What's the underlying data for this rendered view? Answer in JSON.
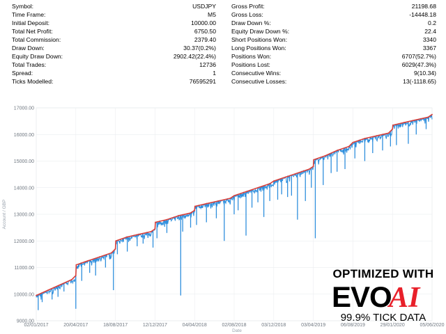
{
  "stats_left": [
    {
      "label": "Symbol:",
      "value": "USDJPY"
    },
    {
      "label": "Time Frame:",
      "value": "M5"
    },
    {
      "label": "Initial Deposit:",
      "value": "10000.00"
    },
    {
      "label": "Total Net Profit:",
      "value": "6750.50"
    },
    {
      "label": "Total Commission:",
      "value": "2379.40"
    },
    {
      "label": "Draw Down:",
      "value": "30.37(0.2%)"
    },
    {
      "label": "Equity Draw Down:",
      "value": "2902.42(22.4%)"
    },
    {
      "label": "Total Trades:",
      "value": "12736"
    },
    {
      "label": "Spread:",
      "value": "1"
    },
    {
      "label": "Ticks Modelled:",
      "value": "76595291"
    }
  ],
  "stats_right": [
    {
      "label": "Gross Profit:",
      "value": "21198.68"
    },
    {
      "label": "Gross Loss:",
      "value": "-14448.18"
    },
    {
      "label": "Draw Down %:",
      "value": "0.2"
    },
    {
      "label": "Equity Draw Down %:",
      "value": "22.4"
    },
    {
      "label": "Short Positions Won:",
      "value": "3340"
    },
    {
      "label": "Long Positions Won:",
      "value": "3367"
    },
    {
      "label": "Positions Won:",
      "value": "6707(52.7%)"
    },
    {
      "label": "Positions Lost:",
      "value": "6029(47.3%)"
    },
    {
      "label": "Consecutive Wins:",
      "value": "9(10.34)"
    },
    {
      "label": "Consecutive Losses:",
      "value": "13(-1118.65)"
    }
  ],
  "chart_data": {
    "type": "line",
    "title": "",
    "xlabel": "Date",
    "ylabel": "Account / GBP",
    "ylim": [
      9000,
      17000
    ],
    "yticks": [
      "17000.00",
      "16000.00",
      "15000.00",
      "14000.00",
      "13000.00",
      "12000.00",
      "11000.00",
      "10000.00",
      "9000.00"
    ],
    "xticks": [
      "02/01/2017",
      "20/04/2017",
      "18/08/2017",
      "12/12/2017",
      "04/04/2018",
      "02/08/2018",
      "03/12/2018",
      "03/04/2019",
      "06/08/2019",
      "29/01/2020",
      "05/06/2020"
    ],
    "x_positions": [
      0,
      1,
      2,
      3,
      4,
      5,
      6,
      7,
      8,
      9,
      10
    ],
    "grid": true,
    "series": [
      {
        "color": "#d9403a",
        "x": [
          0.0,
          0.3,
          0.6,
          0.9,
          1.0,
          1.01,
          1.3,
          1.6,
          1.9,
          2.0,
          2.01,
          2.3,
          2.6,
          2.9,
          3.0,
          3.01,
          3.3,
          3.6,
          3.9,
          4.0,
          4.01,
          4.3,
          4.6,
          4.9,
          5.0,
          5.3,
          5.6,
          5.9,
          6.0,
          6.3,
          6.6,
          6.9,
          7.0,
          7.01,
          7.3,
          7.6,
          7.9,
          8.0,
          8.3,
          8.6,
          8.9,
          9.0,
          9.01,
          9.3,
          9.6,
          9.9,
          10.0
        ],
        "values": [
          9950,
          10150,
          10350,
          10550,
          10700,
          11100,
          11250,
          11400,
          11550,
          11700,
          12000,
          12150,
          12250,
          12350,
          12450,
          12700,
          12800,
          12950,
          13050,
          13150,
          13300,
          13400,
          13500,
          13600,
          13700,
          13850,
          14000,
          14150,
          14250,
          14400,
          14550,
          14700,
          14800,
          15050,
          15200,
          15400,
          15550,
          15700,
          15850,
          15950,
          16050,
          16200,
          16350,
          16450,
          16550,
          16650,
          16750
        ]
      },
      {
        "color": "#2f8fdd",
        "dips_x": [
          0.05,
          0.15,
          0.4,
          0.55,
          0.7,
          1.0,
          1.15,
          1.35,
          1.5,
          1.75,
          1.95,
          2.05,
          2.3,
          2.55,
          2.7,
          2.95,
          3.05,
          3.3,
          3.65,
          3.7,
          3.9,
          4.05,
          4.3,
          4.55,
          4.75,
          5.0,
          5.1,
          5.3,
          5.45,
          5.6,
          5.75,
          5.9,
          6.1,
          6.2,
          6.35,
          6.45,
          6.6,
          6.8,
          6.95,
          7.05,
          7.25,
          7.45,
          7.6,
          7.8,
          8.05,
          8.3,
          8.5,
          8.75,
          8.95,
          9.1,
          9.4,
          9.6,
          9.85
        ],
        "dips_y": [
          9400,
          9700,
          9800,
          9900,
          10100,
          9450,
          10500,
          10800,
          10700,
          11000,
          10150,
          11500,
          11600,
          11800,
          11900,
          11750,
          12100,
          12300,
          9950,
          12350,
          12500,
          12600,
          12700,
          12850,
          12000,
          13000,
          13150,
          12200,
          13250,
          13450,
          12900,
          13500,
          13550,
          13750,
          13650,
          13700,
          12800,
          13500,
          14000,
          12100,
          14100,
          14550,
          14600,
          14700,
          15100,
          15000,
          15300,
          15400,
          15550,
          15600,
          15650,
          16000,
          16200
        ]
      }
    ]
  },
  "logo": {
    "line1": "OPTIMIZED WITH",
    "brand_evo": "EVO",
    "brand_ai": "AI",
    "line3": "99.9% TICK DATA",
    "colors": {
      "evo": "#000000",
      "ai": "#e8202a"
    }
  }
}
